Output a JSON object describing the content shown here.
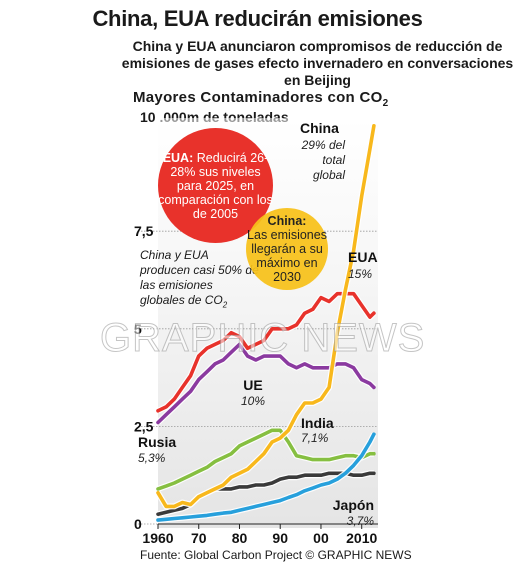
{
  "headline": "China, EUA reducirán emisiones",
  "intro": "China y EUA anunciaron compromisos de reducción de emisiones de gases efecto invernadero en conversaciones en Beijing",
  "section_title": "Mayores Contaminadores con CO",
  "section_title_sub": "2",
  "source": "Fuente: Global Carbon Project  © GRAPHIC NEWS",
  "watermark": "GRAPHIC NEWS",
  "note_text": "China y EUA producen casi 50% de las emisiones globales de CO",
  "note_sub": "2",
  "bubble_eua": {
    "title": "EUA:",
    "text": "Reducirá 26-28% sus niveles para 2025, en comparación con los de 2005"
  },
  "bubble_china": {
    "title": "China:",
    "text": "Las emisiones llegarán a su máximo en 2030"
  },
  "colors": {
    "china": "#f8b81c",
    "eua": "#e8322b",
    "ue": "#8b3aa0",
    "india": "#27a0dc",
    "rusia": "#86bf41",
    "japon": "#3a3a3a"
  },
  "chart_data": {
    "type": "line",
    "unit_label": "10 .000m de toneladas",
    "x": [
      1960,
      1962,
      1964,
      1966,
      1968,
      1970,
      1972,
      1974,
      1976,
      1978,
      1980,
      1982,
      1984,
      1986,
      1988,
      1990,
      1992,
      1994,
      1996,
      1998,
      2000,
      2002,
      2004,
      2006,
      2008,
      2010,
      2012,
      2013
    ],
    "y_range": [
      0,
      10.4
    ],
    "y_ticks": [
      {
        "value": 0,
        "label": "0"
      },
      {
        "value": 2.5,
        "label": "2,5"
      },
      {
        "value": 5,
        "label": "5"
      },
      {
        "value": 7.5,
        "label": "7,5"
      }
    ],
    "x_ticks": [
      {
        "value": 1960,
        "label": "1960"
      },
      {
        "value": 1970,
        "label": "70"
      },
      {
        "value": 1980,
        "label": "80"
      },
      {
        "value": 1990,
        "label": "90"
      },
      {
        "value": 2000,
        "label": "00"
      },
      {
        "value": 2010,
        "label": "2010"
      }
    ],
    "series": [
      {
        "name": "China",
        "share": "29% del total global",
        "color": "#f8b81c",
        "values": [
          0.8,
          0.45,
          0.45,
          0.55,
          0.5,
          0.7,
          0.8,
          0.9,
          1.0,
          1.2,
          1.3,
          1.4,
          1.6,
          1.8,
          2.1,
          2.2,
          2.4,
          2.8,
          3.1,
          3.1,
          3.2,
          3.5,
          4.9,
          6.0,
          7.0,
          8.4,
          9.6,
          10.2
        ]
      },
      {
        "name": "EUA",
        "share": "15%",
        "color": "#e8322b",
        "values": [
          2.9,
          3.0,
          3.2,
          3.5,
          3.8,
          4.3,
          4.5,
          4.6,
          4.7,
          4.9,
          4.8,
          4.5,
          4.6,
          4.7,
          5.0,
          5.0,
          5.0,
          5.1,
          5.4,
          5.5,
          5.8,
          5.7,
          5.9,
          5.9,
          5.9,
          5.6,
          5.3,
          5.4
        ]
      },
      {
        "name": "UE",
        "share": "10%",
        "color": "#8b3aa0",
        "values": [
          2.6,
          2.8,
          3.0,
          3.2,
          3.4,
          3.7,
          3.9,
          4.1,
          4.2,
          4.4,
          4.6,
          4.3,
          4.2,
          4.3,
          4.3,
          4.3,
          4.1,
          4.0,
          4.1,
          4.0,
          4.0,
          4.0,
          4.1,
          4.1,
          4.0,
          3.7,
          3.6,
          3.5
        ]
      },
      {
        "name": "India",
        "share": "7,1%",
        "color": "#27a0dc",
        "values": [
          0.1,
          0.12,
          0.14,
          0.16,
          0.18,
          0.2,
          0.22,
          0.25,
          0.28,
          0.3,
          0.35,
          0.4,
          0.45,
          0.5,
          0.55,
          0.6,
          0.68,
          0.75,
          0.85,
          0.92,
          1.0,
          1.05,
          1.15,
          1.3,
          1.5,
          1.75,
          2.1,
          2.3
        ]
      },
      {
        "name": "Rusia",
        "share": "5,3%",
        "color": "#86bf41",
        "values": [
          0.9,
          0.97,
          1.05,
          1.15,
          1.25,
          1.35,
          1.45,
          1.6,
          1.7,
          1.8,
          2.0,
          2.1,
          2.2,
          2.3,
          2.4,
          2.4,
          2.1,
          1.75,
          1.7,
          1.65,
          1.65,
          1.65,
          1.7,
          1.75,
          1.75,
          1.7,
          1.8,
          1.8
        ]
      },
      {
        "name": "Japón",
        "share": "3,7%",
        "color": "#3a3a3a",
        "values": [
          0.25,
          0.3,
          0.35,
          0.4,
          0.5,
          0.7,
          0.8,
          0.9,
          0.9,
          0.9,
          0.95,
          0.95,
          1.0,
          1.0,
          1.05,
          1.15,
          1.2,
          1.2,
          1.25,
          1.25,
          1.25,
          1.3,
          1.3,
          1.3,
          1.25,
          1.25,
          1.3,
          1.3
        ]
      }
    ]
  }
}
